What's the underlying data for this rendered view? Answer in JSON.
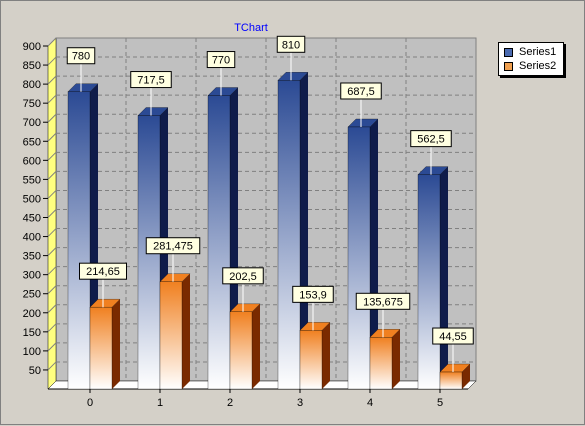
{
  "chart_data": {
    "type": "bar",
    "title": "TChart",
    "categories": [
      "0",
      "1",
      "2",
      "3",
      "4",
      "5"
    ],
    "series": [
      {
        "name": "Series1",
        "values": [
          780,
          717.5,
          770,
          810,
          687.5,
          562.5
        ],
        "labels": [
          "780",
          "717,5",
          "770",
          "810",
          "687,5",
          "562,5"
        ]
      },
      {
        "name": "Series2",
        "values": [
          214.65,
          281.475,
          202.5,
          153.9,
          135.675,
          44.55
        ],
        "labels": [
          "214,65",
          "281,475",
          "202,5",
          "153,9",
          "135,675",
          "44,55"
        ]
      }
    ],
    "ylim": [
      0,
      900
    ],
    "yticks": [
      "50",
      "100",
      "150",
      "200",
      "250",
      "300",
      "350",
      "400",
      "450",
      "500",
      "550",
      "600",
      "650",
      "700",
      "750",
      "800",
      "850",
      "900"
    ],
    "xlabel": "",
    "ylabel": "",
    "grid": true,
    "legend_position": "top-right",
    "three_d": true
  },
  "colors": {
    "background": "#d4d0c8",
    "wall": "#c0c0c0",
    "left_wall": "#ffff80",
    "grid": "#808080",
    "title": "#0000ff",
    "series1_dark": "#2b4a94",
    "series1_light": "#ffffff",
    "series1_side": "#0f1c4a",
    "series2_dark": "#f08020",
    "series2_light": "#ffffff",
    "series2_side": "#7a2a00",
    "series1_legend": "#4a6ab0",
    "series2_legend": "#f0a050"
  }
}
